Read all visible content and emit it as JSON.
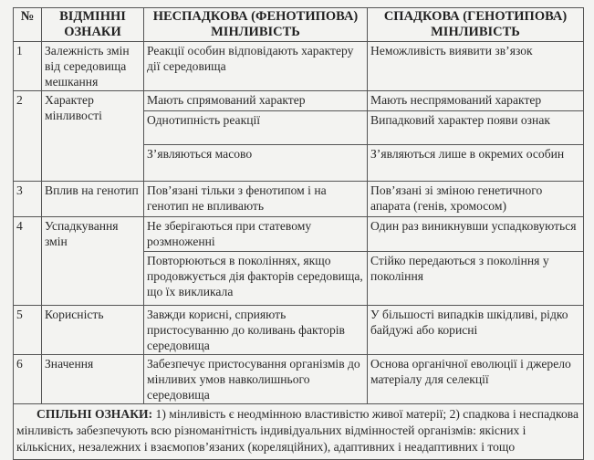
{
  "header": {
    "num": "№",
    "features": "ВІДМІННІ ОЗНАКИ",
    "non_hereditary": "НЕСПАДКОВА (ФЕНОТИПОВА) МІНЛИВІСТЬ",
    "hereditary": "СПАДКОВА (ГЕНОТИПОВА) МІНЛИВІСТЬ"
  },
  "rows": [
    {
      "num": "1",
      "feature": "Залежність змін від середовища мешкання",
      "pairs": [
        [
          "Реакції особин відповідають характеру дії середовища",
          "Неможливість виявити зв’язок"
        ]
      ]
    },
    {
      "num": "2",
      "feature": "Характер мінливості",
      "pairs": [
        [
          "Мають спрямований характер",
          "Мають неспрямований характер"
        ],
        [
          "Однотипність реакції",
          "Випадковий характер появи ознак"
        ],
        [
          "З’являються масово",
          "З’являються лише в окремих особин"
        ]
      ]
    },
    {
      "num": "3",
      "feature": "Вплив на генотип",
      "pairs": [
        [
          "Пов’язані тільки з фенотипом і на генотип не впливають",
          "Пов’язані зі зміною генетичного апарата (генів, хромосом)"
        ]
      ]
    },
    {
      "num": "4",
      "feature": "Успадкування змін",
      "pairs": [
        [
          "Не зберігаються при статевому розмноженні",
          "Один раз виникнувши успадковуються"
        ],
        [
          "Повторюються в поколіннях, якщо продовжується дія факторів середовища, що їх викликала",
          "Стійко передаються з покоління у покоління"
        ]
      ]
    },
    {
      "num": "5",
      "feature": "Корисність",
      "pairs": [
        [
          "Завжди корисні, сприяють пристосуванню до коливань факторів середовища",
          "У більшості випадків шкідливі, рідко байдужі або корисні"
        ]
      ]
    },
    {
      "num": "6",
      "feature": "Значення",
      "pairs": [
        [
          "Забезпечує пристосування організмів до мінливих умов навколишнього середовища",
          "Основа органічної еволюції і джерело матеріалу для селекції"
        ]
      ]
    }
  ],
  "footer": {
    "label": "СПІЛЬНІ ОЗНАКИ:",
    "text": " 1) мінливість є неодмінною властивістю живої матерії; 2) спадкова і неспадкова мінливість забезпечують всю різноманітність індивідуальних відмінностей організмів: якісних і кількісних, незалежних і взаємопов’язаних (кореляційних), адаптивних і неадаптивних і тощо"
  }
}
